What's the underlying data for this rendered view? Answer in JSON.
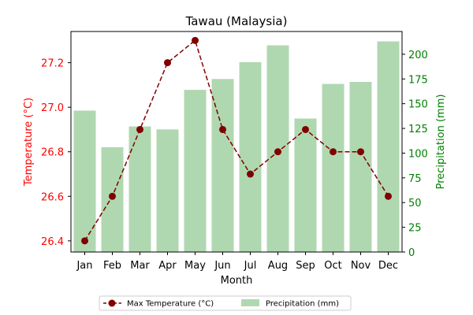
{
  "chart_data": {
    "type": "bar+line",
    "title": "Tawau (Malaysia)",
    "xlabel": "Month",
    "categories": [
      "Jan",
      "Feb",
      "Mar",
      "Apr",
      "May",
      "Jun",
      "Jul",
      "Aug",
      "Sep",
      "Oct",
      "Nov",
      "Dec"
    ],
    "temperature": {
      "name": "Max Temperature (°C)",
      "axis_label": "Temperature (°C)",
      "values": [
        26.4,
        26.6,
        26.9,
        27.2,
        27.3,
        26.9,
        26.7,
        26.8,
        26.9,
        26.8,
        26.8,
        26.6
      ],
      "ylim": [
        26.35,
        27.34
      ],
      "ticks": [
        26.4,
        26.6,
        26.8,
        27.0,
        27.2
      ],
      "tick_labels": [
        "26.4",
        "26.6",
        "26.8",
        "27.0",
        "27.2"
      ],
      "color": "#800000",
      "axis_color": "#ff0000",
      "style": "dashed line with circle markers"
    },
    "precipitation": {
      "name": "Precipitation (mm)",
      "axis_label": "Precipitation (mm)",
      "values": [
        143,
        106,
        127,
        124,
        164,
        175,
        192,
        209,
        135,
        170,
        172,
        213
      ],
      "ylim": [
        0,
        223
      ],
      "ticks": [
        0,
        25,
        50,
        75,
        100,
        125,
        150,
        175,
        200
      ],
      "tick_labels": [
        "0",
        "25",
        "50",
        "75",
        "100",
        "125",
        "150",
        "175",
        "200"
      ],
      "color": "#b0d8b0",
      "axis_color": "#008000"
    },
    "grid": false,
    "legend_position": "bottom-center"
  }
}
